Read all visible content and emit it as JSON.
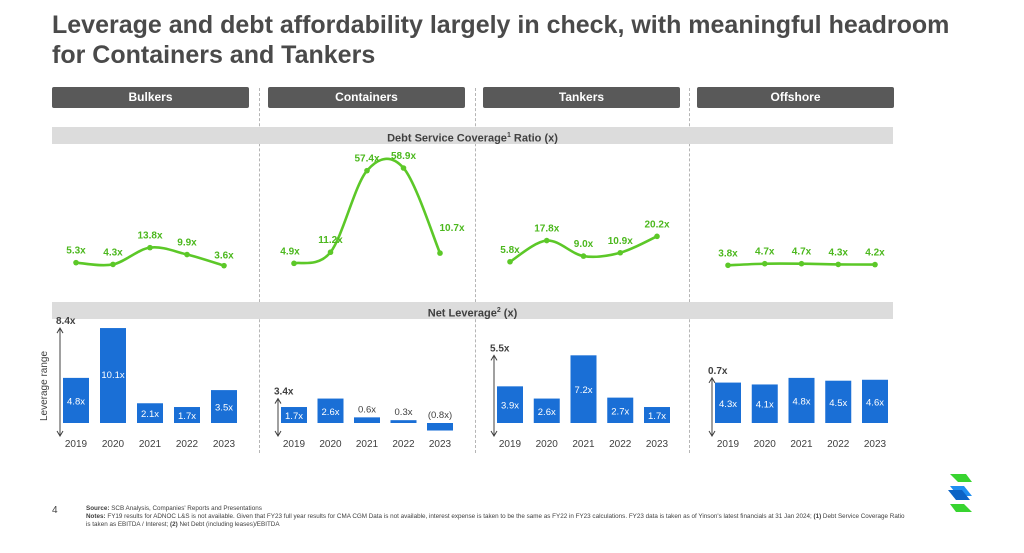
{
  "title": "Leverage and debt affordability largely in check, with meaningful headroom for Containers and Tankers",
  "segments": [
    "Bulkers",
    "Containers",
    "Tankers",
    "Offshore"
  ],
  "dscr_band": {
    "label": "Debt Service Coverage",
    "sup": "1",
    "suffix": " Ratio (x)"
  },
  "leverage_band": {
    "label": "Net Leverage",
    "sup": "2",
    "suffix": " (x)"
  },
  "page_number": "4",
  "footnotes": {
    "source_label": "Source:",
    "source_text": " SCB Analysis, Companies' Reports and Presentations",
    "notes_label": "Notes:",
    "notes_text": " FY19 results for ADNOC L&S is not available. Given that FY23 full year results for CMA CGM Data is not available, interest expense is taken to be the same as FY22 in FY23 calculations. FY23 data is taken as of Yinson's latest financials at 31 Jan 2024; ",
    "n1_label": "(1)",
    "n1_text": " Debt Service Coverage Ratio is taken as EBITDA / Interest; ",
    "n2_label": "(2)",
    "n2_text": " Net Debt (including leases)/EBITDA"
  },
  "colors": {
    "line": "#5cc828",
    "line_label": "#4cb81e",
    "bar": "#1a6fd6",
    "header": "#595959",
    "band": "#dcdcdc"
  },
  "chart_data": [
    {
      "type": "line",
      "panel": "Bulkers",
      "title": "Debt Service Coverage Ratio (x)",
      "x": [
        "2019",
        "2020",
        "2021",
        "2022",
        "2023"
      ],
      "values": [
        5.3,
        4.3,
        13.8,
        9.9,
        3.6
      ],
      "labels": [
        "5.3x",
        "4.3x",
        "13.8x",
        "9.9x",
        "3.6x"
      ],
      "ylim": [
        0,
        60
      ]
    },
    {
      "type": "line",
      "panel": "Containers",
      "title": "Debt Service Coverage Ratio (x)",
      "x": [
        "2019",
        "2020",
        "2021",
        "2022",
        "2023"
      ],
      "values": [
        4.9,
        11.2,
        57.4,
        58.9,
        10.7
      ],
      "labels": [
        "4.9x",
        "11.2x",
        "57.4x",
        "58.9x",
        "10.7x"
      ],
      "ylim": [
        0,
        60
      ]
    },
    {
      "type": "line",
      "panel": "Tankers",
      "title": "Debt Service Coverage Ratio (x)",
      "x": [
        "2019",
        "2020",
        "2021",
        "2022",
        "2023"
      ],
      "values": [
        5.8,
        17.8,
        9.0,
        10.9,
        20.2
      ],
      "labels": [
        "5.8x",
        "17.8x",
        "9.0x",
        "10.9x",
        "20.2x"
      ],
      "ylim": [
        0,
        60
      ]
    },
    {
      "type": "line",
      "panel": "Offshore",
      "title": "Debt Service Coverage Ratio (x)",
      "x": [
        "2019",
        "2020",
        "2021",
        "2022",
        "2023"
      ],
      "values": [
        3.8,
        4.7,
        4.7,
        4.3,
        4.2
      ],
      "labels": [
        "3.8x",
        "4.7x",
        "4.7x",
        "4.3x",
        "4.2x"
      ],
      "ylim": [
        0,
        60
      ]
    },
    {
      "type": "bar",
      "panel": "Bulkers",
      "title": "Net Leverage (x)",
      "categories": [
        "2019",
        "2020",
        "2021",
        "2022",
        "2023"
      ],
      "values": [
        4.8,
        10.1,
        2.1,
        1.7,
        3.5
      ],
      "labels": [
        "4.8x",
        "10.1x",
        "2.1x",
        "1.7x",
        "3.5x"
      ],
      "range_label": "8.4x",
      "range_axis_label": "Leverage  range",
      "ylim": [
        -1,
        10.1
      ]
    },
    {
      "type": "bar",
      "panel": "Containers",
      "title": "Net Leverage (x)",
      "categories": [
        "2019",
        "2020",
        "2021",
        "2022",
        "2023"
      ],
      "values": [
        1.7,
        2.6,
        0.6,
        0.3,
        -0.8
      ],
      "labels": [
        "1.7x",
        "2.6x",
        "0.6x",
        "0.3x",
        "(0.8x)"
      ],
      "range_label": "3.4x",
      "ylim": [
        -1,
        10.1
      ]
    },
    {
      "type": "bar",
      "panel": "Tankers",
      "title": "Net Leverage (x)",
      "categories": [
        "2019",
        "2020",
        "2021",
        "2022",
        "2023"
      ],
      "values": [
        3.9,
        2.6,
        7.2,
        2.7,
        1.7
      ],
      "labels": [
        "3.9x",
        "2.6x",
        "7.2x",
        "2.7x",
        "1.7x"
      ],
      "range_label": "5.5x",
      "ylim": [
        -1,
        10.1
      ]
    },
    {
      "type": "bar",
      "panel": "Offshore",
      "title": "Net Leverage (x)",
      "categories": [
        "2019",
        "2020",
        "2021",
        "2022",
        "2023"
      ],
      "values": [
        4.3,
        4.1,
        4.8,
        4.5,
        4.6
      ],
      "labels": [
        "4.3x",
        "4.1x",
        "4.8x",
        "4.5x",
        "4.6x"
      ],
      "range_label": "0.7x",
      "ylim": [
        -1,
        10.1
      ]
    }
  ]
}
